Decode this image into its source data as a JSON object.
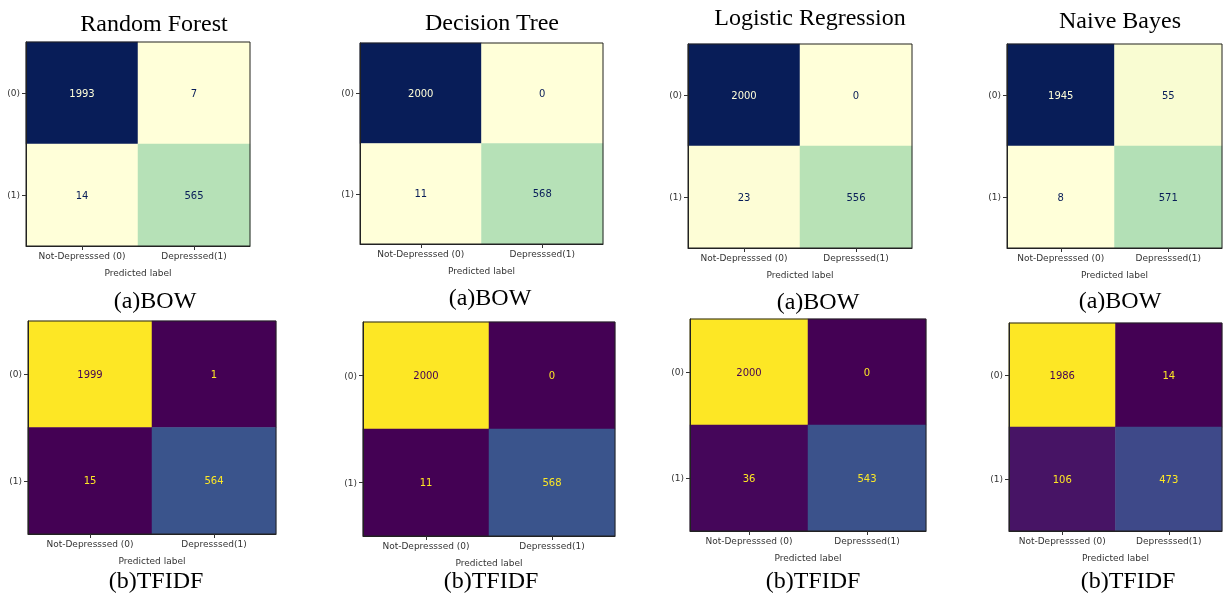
{
  "chart_data": [
    {
      "type": "heatmap",
      "title": "Random Forest",
      "categories": [
        "Not-Depresssed (0)",
        "Depresssed(1)"
      ],
      "y_categories": [
        "(0)",
        "(1)"
      ],
      "xlabel": "Predicted label",
      "cells": [
        [
          1993,
          7
        ],
        [
          14,
          565
        ]
      ],
      "colors": [
        "#081d58",
        "#ffffd9",
        "#ffffd9",
        "#b6e1b7"
      ],
      "data_labels": true,
      "annotations": [
        "(a)BOW"
      ]
    },
    {
      "type": "heatmap",
      "title": "Decision Tree",
      "categories": [
        "Not-Depresssed (0)",
        "Depresssed(1)"
      ],
      "y_categories": [
        "(0)",
        "(1)"
      ],
      "xlabel": "Predicted label",
      "cells": [
        [
          2000,
          0
        ],
        [
          11,
          568
        ]
      ],
      "colors": [
        "#081d58",
        "#ffffd9",
        "#ffffd9",
        "#b6e1b7"
      ],
      "data_labels": true,
      "annotations": [
        "(a)BOW"
      ]
    },
    {
      "type": "heatmap",
      "title": "Logistic Regression",
      "categories": [
        "Not-Depresssed (0)",
        "Depresssed(1)"
      ],
      "y_categories": [
        "(0)",
        "(1)"
      ],
      "xlabel": "Predicted label",
      "cells": [
        [
          2000,
          0
        ],
        [
          23,
          556
        ]
      ],
      "colors": [
        "#081d58",
        "#ffffd9",
        "#fdfdd6",
        "#b8e2b6"
      ],
      "data_labels": true,
      "annotations": [
        "(a)BOW"
      ]
    },
    {
      "type": "heatmap",
      "title": "Naive Bayes",
      "categories": [
        "Not-Depresssed (0)",
        "Depresssed(1)"
      ],
      "y_categories": [
        "(0)",
        "(1)"
      ],
      "xlabel": "Predicted label",
      "cells": [
        [
          1945,
          55
        ],
        [
          8,
          571
        ]
      ],
      "colors": [
        "#081d58",
        "#f9fcd2",
        "#ffffd9",
        "#b3e0b6"
      ],
      "data_labels": true,
      "annotations": [
        "(a)BOW"
      ]
    },
    {
      "type": "heatmap",
      "categories": [
        "Not-Depresssed (0)",
        "Depresssed(1)"
      ],
      "y_categories": [
        "(0)",
        "(1)"
      ],
      "xlabel": "Predicted label",
      "cells": [
        [
          1999,
          1
        ],
        [
          15,
          564
        ]
      ],
      "colors": [
        "#fde725",
        "#440154",
        "#440154",
        "#3a548c"
      ],
      "data_labels": true,
      "annotations": [
        "(b)TFIDF"
      ]
    },
    {
      "type": "heatmap",
      "categories": [
        "Not-Depresssed (0)",
        "Depresssed(1)"
      ],
      "y_categories": [
        "(0)",
        "(1)"
      ],
      "xlabel": "Predicted label",
      "cells": [
        [
          2000,
          0
        ],
        [
          11,
          568
        ]
      ],
      "colors": [
        "#fde725",
        "#440154",
        "#440154",
        "#3a548c"
      ],
      "data_labels": true,
      "annotations": [
        "(b)TFIDF"
      ]
    },
    {
      "type": "heatmap",
      "categories": [
        "Not-Depresssed (0)",
        "Depresssed(1)"
      ],
      "y_categories": [
        "(0)",
        "(1)"
      ],
      "xlabel": "Predicted label",
      "cells": [
        [
          2000,
          0
        ],
        [
          36,
          543
        ]
      ],
      "colors": [
        "#fde725",
        "#440154",
        "#45065a",
        "#3b528b"
      ],
      "data_labels": true,
      "annotations": [
        "(b)TFIDF"
      ]
    },
    {
      "type": "heatmap",
      "categories": [
        "Not-Depresssed (0)",
        "Depresssed(1)"
      ],
      "y_categories": [
        "(0)",
        "(1)"
      ],
      "xlabel": "Predicted label",
      "cells": [
        [
          1986,
          14
        ],
        [
          106,
          473
        ]
      ],
      "colors": [
        "#fde725",
        "#440154",
        "#471465",
        "#3e4989"
      ],
      "data_labels": true,
      "annotations": [
        "(b)TFIDF"
      ]
    }
  ]
}
